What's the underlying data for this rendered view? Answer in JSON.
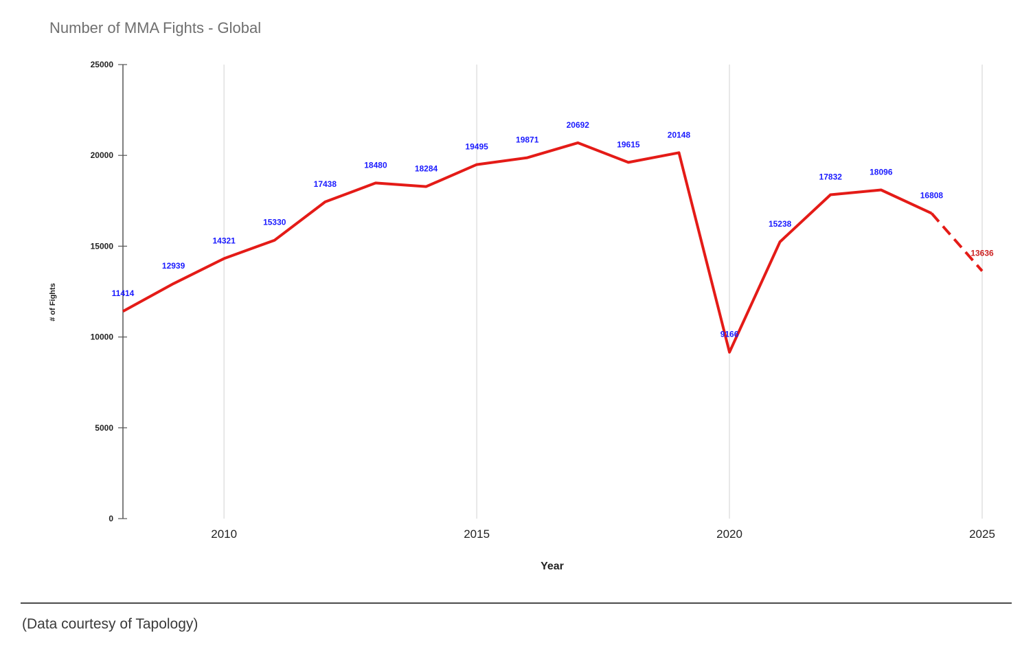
{
  "footer": {
    "note": "(Data courtesy of Tapology)"
  },
  "colors": {
    "line": "#e41b17",
    "label_actual": "#1a1aff",
    "label_projected": "#cc2222",
    "grid": "#d9d9d9",
    "axis": "#555555"
  },
  "chart_data": {
    "type": "line",
    "title": "Number of MMA Fights - Global",
    "xlabel": "Year",
    "ylabel": "# of Fights",
    "xlim": [
      2008,
      2025
    ],
    "ylim": [
      0,
      25000
    ],
    "x_ticks": [
      2010,
      2015,
      2020,
      2025
    ],
    "y_ticks": [
      0,
      5000,
      10000,
      15000,
      20000,
      25000
    ],
    "grid": "vertical",
    "series": [
      {
        "style": "solid",
        "x": [
          2008,
          2009,
          2010,
          2011,
          2012,
          2013,
          2014,
          2015,
          2016,
          2017,
          2018,
          2019,
          2020,
          2021,
          2022,
          2023,
          2024
        ],
        "y": [
          11414,
          12939,
          14321,
          15330,
          17438,
          18480,
          18284,
          19495,
          19871,
          20692,
          19615,
          20148,
          9166,
          15238,
          17832,
          18096,
          16808
        ],
        "labels": [
          "11414",
          "12939",
          "14321",
          "15330",
          "17438",
          "18480",
          "18284",
          "19495",
          "19871",
          "20692",
          "19615",
          "20148",
          "9166",
          "15238",
          "17832",
          "18096",
          "16808"
        ]
      },
      {
        "style": "dashed",
        "x": [
          2024,
          2025
        ],
        "y": [
          16808,
          13636
        ],
        "labels": [
          "",
          "13636"
        ]
      }
    ]
  }
}
